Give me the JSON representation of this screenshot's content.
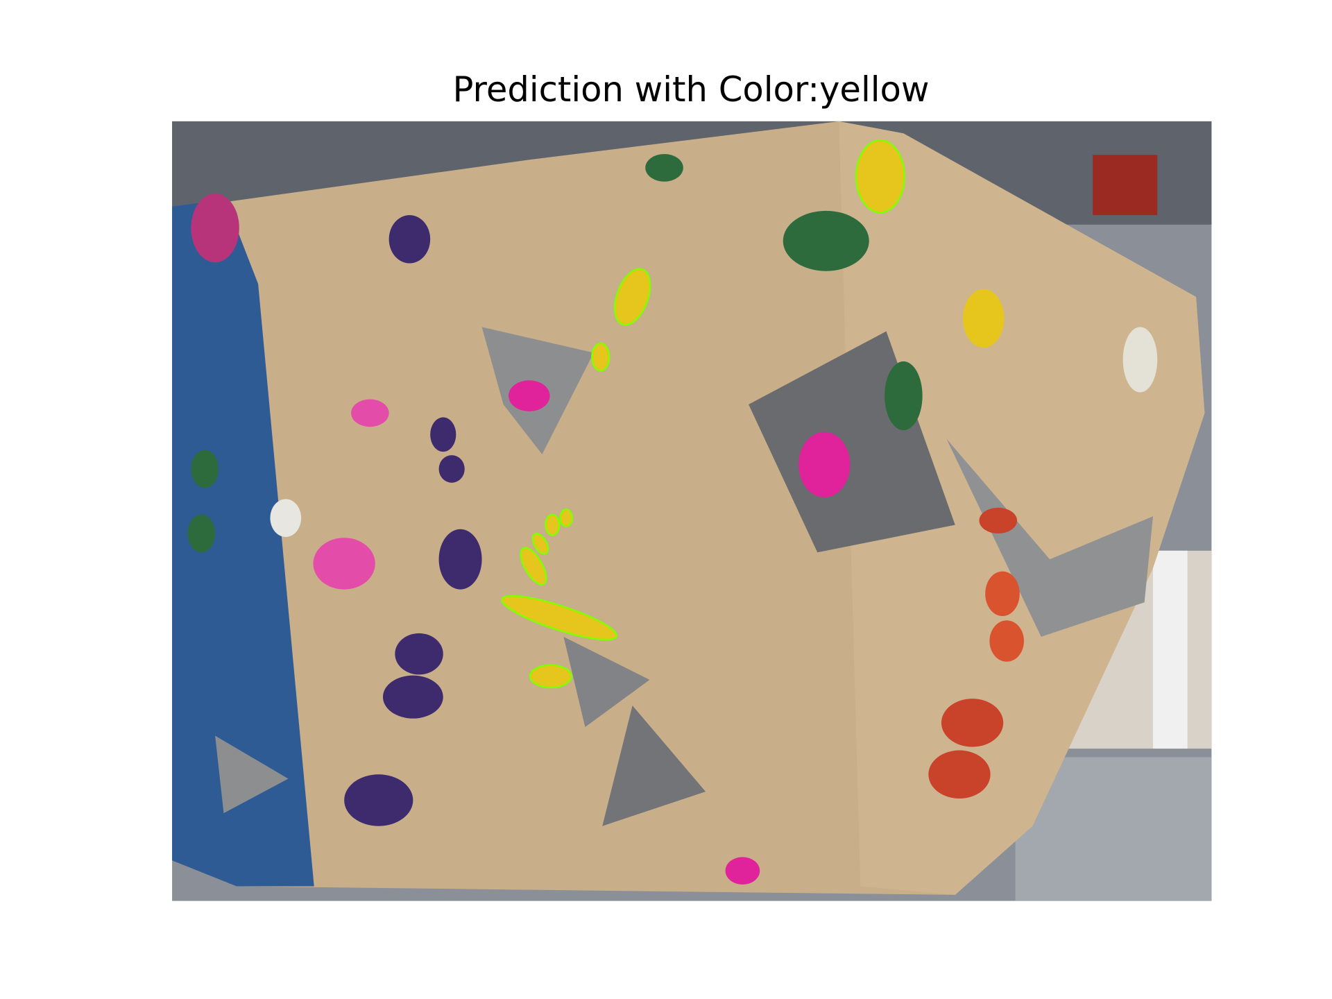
{
  "title": "Prediction with Color:yellow"
}
